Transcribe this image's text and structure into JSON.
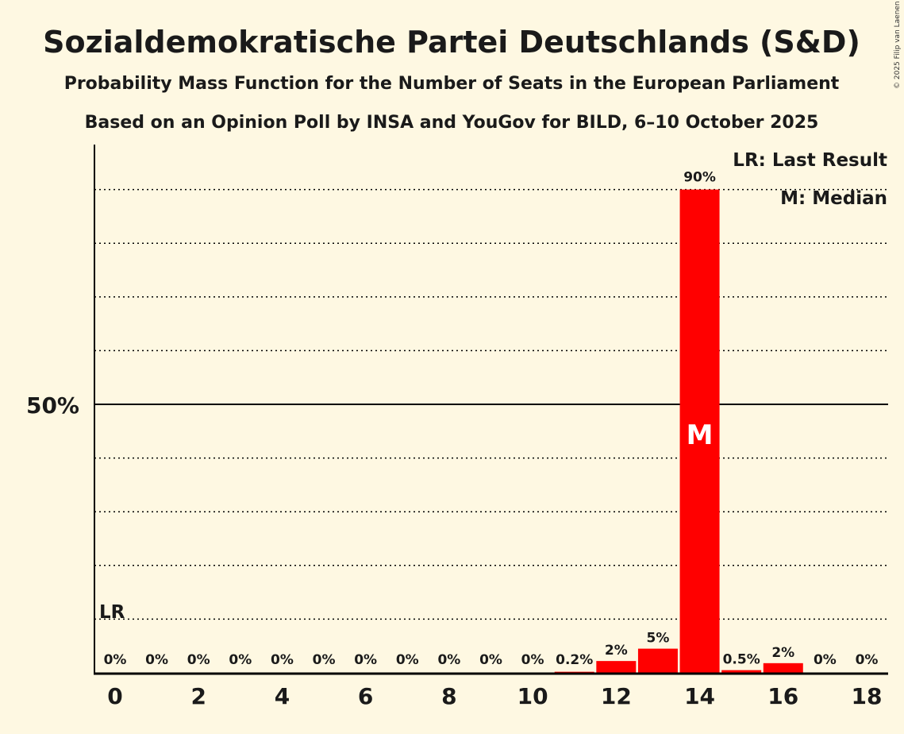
{
  "chart_data": {
    "type": "bar",
    "title": "Sozialdemokratische Partei Deutschlands (S&D)",
    "subtitle": "Probability Mass Function for the Number of Seats in the European Parliament",
    "subtitle2": "Based on an Opinion Poll by INSA and YouGov for BILD, 6–10 October 2025",
    "copyright": "© 2025 Filip van Laenen",
    "categories": [
      0,
      1,
      2,
      3,
      4,
      5,
      6,
      7,
      8,
      9,
      10,
      11,
      12,
      13,
      14,
      15,
      16,
      17,
      18
    ],
    "values": [
      0,
      0,
      0,
      0,
      0,
      0,
      0,
      0,
      0,
      0,
      0,
      0.2,
      2.2,
      4.5,
      90,
      0.5,
      1.8,
      0,
      0
    ],
    "data_labels": [
      "0%",
      "0%",
      "0%",
      "0%",
      "0%",
      "0%",
      "0%",
      "0%",
      "0%",
      "0%",
      "0%",
      "0.2%",
      "2%",
      "5%",
      "90%",
      "0.5%",
      "2%",
      "0%",
      "0%"
    ],
    "x_tick_labels": [
      "0",
      "2",
      "4",
      "6",
      "8",
      "10",
      "12",
      "14",
      "16",
      "18"
    ],
    "x_ticks": [
      0,
      2,
      4,
      6,
      8,
      10,
      12,
      14,
      16,
      18
    ],
    "y_tick_label": "50%",
    "ylim": [
      0,
      100
    ],
    "gridlines_every": 10,
    "last_result_seat": 0,
    "last_result_marker": "LR",
    "median_seat": 14,
    "median_marker": "M",
    "legend": [
      "LR: Last Result",
      "M: Median"
    ],
    "legend_position": "top-right",
    "bar_color": "#ff0000",
    "xlabel": "",
    "ylabel": ""
  }
}
